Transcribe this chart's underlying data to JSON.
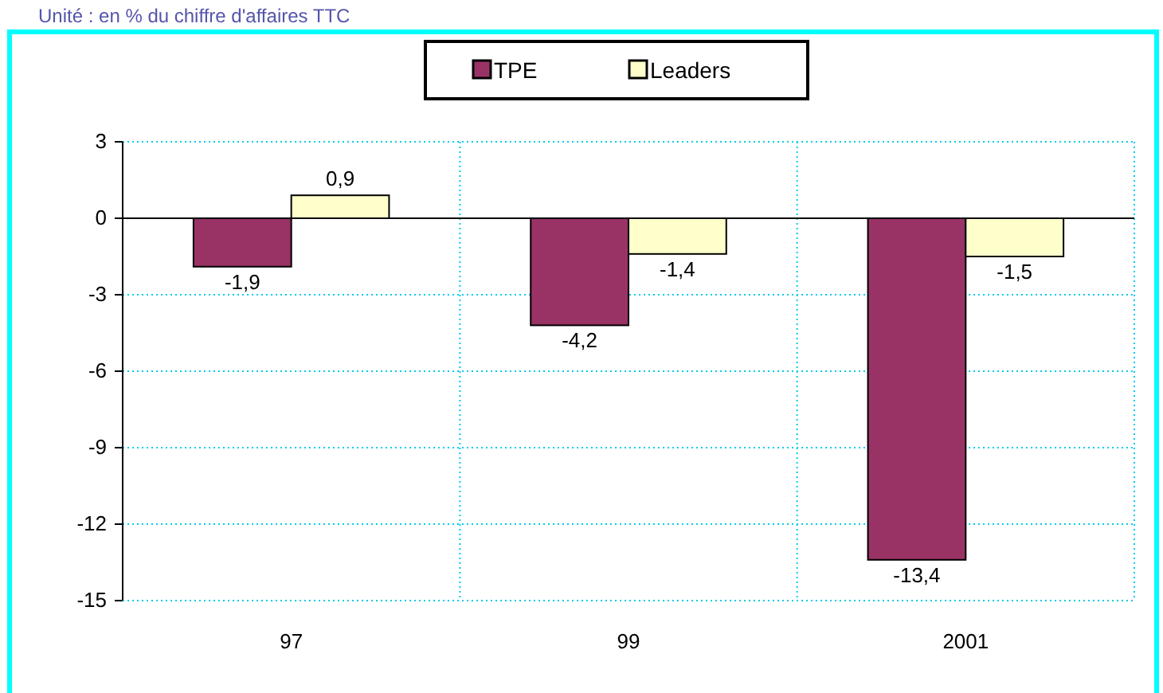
{
  "chart_data": {
    "type": "bar",
    "title": "Unité : en % du chiffre d'affaires TTC",
    "categories": [
      "97",
      "99",
      "2001"
    ],
    "series": [
      {
        "name": "TPE",
        "color": "#993366",
        "values": [
          -1.9,
          -4.2,
          -13.4
        ],
        "value_labels": [
          "-1,9",
          "-4,2",
          "-13,4"
        ]
      },
      {
        "name": "Leaders",
        "color": "#ffffcc",
        "values": [
          0.9,
          -1.4,
          -1.5
        ],
        "value_labels": [
          "0,9",
          "-1,4",
          "-1,5"
        ]
      }
    ],
    "ylim": [
      -15,
      3
    ],
    "yticks": [
      3,
      0,
      -3,
      -6,
      -9,
      -12,
      -15
    ],
    "grid": true,
    "legend": "top"
  }
}
